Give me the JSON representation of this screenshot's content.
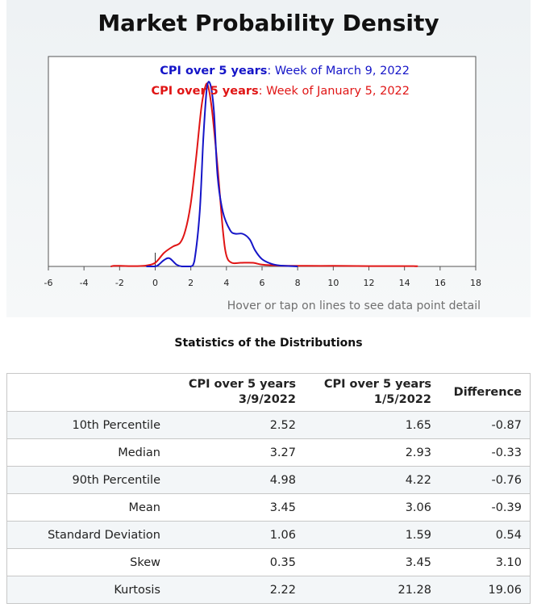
{
  "chart_data": {
    "type": "line",
    "title": "Market Probability Density",
    "xlim": [
      -6,
      18
    ],
    "xticks": [
      "-6",
      "-4",
      "-2",
      "0",
      "2",
      "4",
      "6",
      "8",
      "10",
      "12",
      "14",
      "16",
      "18"
    ],
    "grid": false,
    "legend_position": "top-right",
    "series": [
      {
        "name": "CPI over 5 years",
        "period": ": Week of March 9, 2022",
        "color": "#1515c8",
        "points": [
          [
            -0.5,
            0
          ],
          [
            0,
            0
          ],
          [
            0.2,
            0.01
          ],
          [
            0.5,
            0.035
          ],
          [
            0.8,
            0.045
          ],
          [
            1.2,
            0.01
          ],
          [
            1.5,
            0.0
          ],
          [
            2.0,
            0.0
          ],
          [
            2.2,
            0.03
          ],
          [
            2.5,
            0.3
          ],
          [
            2.7,
            0.7
          ],
          [
            2.9,
            0.98
          ],
          [
            3.1,
            1.0
          ],
          [
            3.3,
            0.85
          ],
          [
            3.5,
            0.5
          ],
          [
            3.8,
            0.3
          ],
          [
            4.2,
            0.2
          ],
          [
            4.5,
            0.18
          ],
          [
            4.9,
            0.18
          ],
          [
            5.3,
            0.15
          ],
          [
            5.6,
            0.09
          ],
          [
            6.0,
            0.04
          ],
          [
            6.5,
            0.015
          ],
          [
            7.0,
            0.005
          ],
          [
            8.0,
            0
          ]
        ]
      },
      {
        "name": "CPI over 5 years",
        "period": ": Week of January 5, 2022",
        "color": "#e01515",
        "points": [
          [
            -2.5,
            0
          ],
          [
            -2.3,
            0.003
          ],
          [
            -2.0,
            0.003
          ],
          [
            -1.5,
            0.002
          ],
          [
            -1.0,
            0.002
          ],
          [
            -0.5,
            0.005
          ],
          [
            0,
            0.02
          ],
          [
            0.5,
            0.075
          ],
          [
            1.0,
            0.11
          ],
          [
            1.4,
            0.13
          ],
          [
            1.7,
            0.2
          ],
          [
            2.0,
            0.35
          ],
          [
            2.3,
            0.6
          ],
          [
            2.6,
            0.88
          ],
          [
            2.85,
            1.0
          ],
          [
            3.0,
            0.98
          ],
          [
            3.2,
            0.85
          ],
          [
            3.5,
            0.55
          ],
          [
            3.8,
            0.2
          ],
          [
            4.0,
            0.06
          ],
          [
            4.3,
            0.02
          ],
          [
            4.8,
            0.02
          ],
          [
            5.5,
            0.02
          ],
          [
            6.0,
            0.01
          ],
          [
            7.0,
            0.004
          ],
          [
            8.0,
            0.003
          ],
          [
            10.0,
            0.003
          ],
          [
            12.0,
            0.002
          ],
          [
            14.5,
            0.002
          ],
          [
            14.6,
            0
          ]
        ]
      }
    ]
  },
  "hover_note": "Hover or tap on lines to see data point detail",
  "stats": {
    "title": "Statistics of the Distributions",
    "headers": [
      {
        "line1": "",
        "line2": ""
      },
      {
        "line1": "CPI over 5 years",
        "line2": "3/9/2022"
      },
      {
        "line1": "CPI over 5 years",
        "line2": "1/5/2022"
      },
      {
        "line1": "Difference",
        "line2": ""
      }
    ],
    "rows": [
      {
        "label": "10th Percentile",
        "a": "2.52",
        "b": "1.65",
        "diff": "-0.87"
      },
      {
        "label": "Median",
        "a": "3.27",
        "b": "2.93",
        "diff": "-0.33"
      },
      {
        "label": "90th Percentile",
        "a": "4.98",
        "b": "4.22",
        "diff": "-0.76"
      },
      {
        "label": "Mean",
        "a": "3.45",
        "b": "3.06",
        "diff": "-0.39"
      },
      {
        "label": "Standard Deviation",
        "a": "1.06",
        "b": "1.59",
        "diff": "0.54"
      },
      {
        "label": "Skew",
        "a": "0.35",
        "b": "3.45",
        "diff": "3.10"
      },
      {
        "label": "Kurtosis",
        "a": "2.22",
        "b": "21.28",
        "diff": "19.06"
      }
    ]
  }
}
